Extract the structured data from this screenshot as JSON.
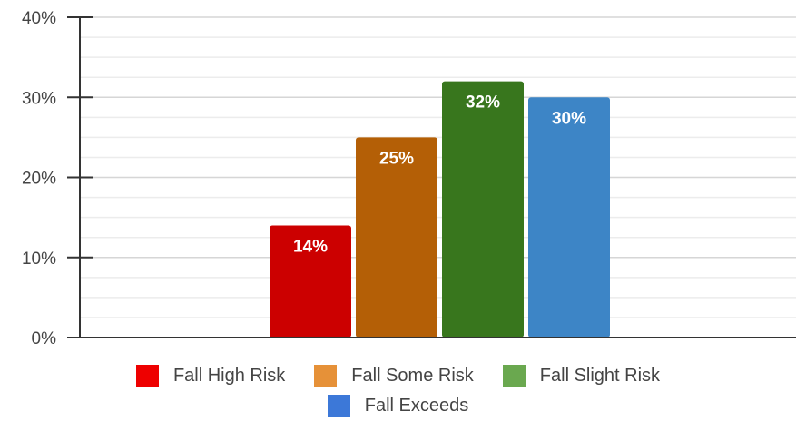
{
  "chart_data": {
    "type": "bar",
    "title": "",
    "xlabel": "",
    "ylabel": "",
    "ylim": [
      0,
      40
    ],
    "yticks": [
      "0%",
      "10%",
      "20%",
      "30%",
      "40%"
    ],
    "grid": true,
    "legend_position": "bottom",
    "categories": [
      "Fall High Risk",
      "Fall Some Risk",
      "Fall Slight Risk",
      "Fall Exceeds"
    ],
    "values": [
      14,
      25,
      32,
      30
    ],
    "data_labels": [
      "14%",
      "25%",
      "32%",
      "30%"
    ],
    "bar_colors": [
      "#cc0000",
      "#b45f06",
      "#38761d",
      "#3d85c6"
    ],
    "legend": [
      {
        "label": "Fall High Risk",
        "color": "#ee0000"
      },
      {
        "label": "Fall Some Risk",
        "color": "#e69138"
      },
      {
        "label": "Fall Slight Risk",
        "color": "#6aa84f"
      },
      {
        "label": "Fall Exceeds",
        "color": "#3c78d8"
      }
    ]
  }
}
